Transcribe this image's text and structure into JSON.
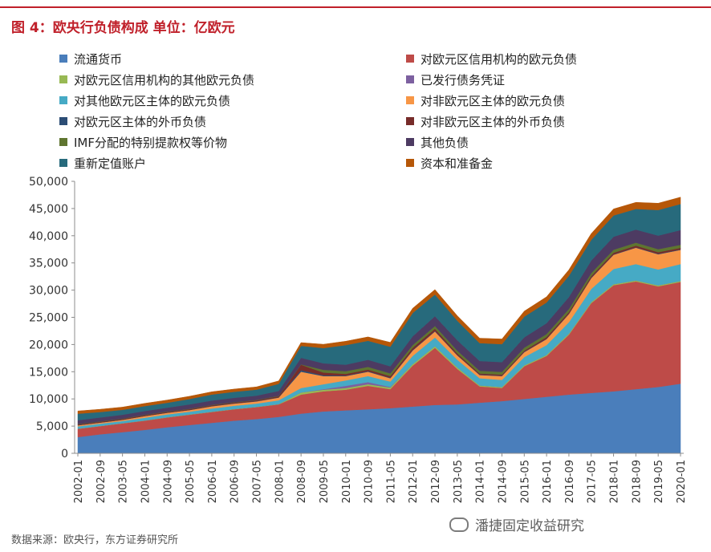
{
  "header": {
    "title": "图 4：欧央行负债构成  单位：亿欧元"
  },
  "footer": {
    "source": "数据来源：欧央行，东方证券研究所",
    "watermark": "潘捷固定收益研究"
  },
  "chart_data": {
    "type": "area",
    "stacked": true,
    "title": "图 4：欧央行负债构成  单位：亿欧元",
    "ylabel": "亿欧元",
    "ylim": [
      0,
      50000
    ],
    "yticks": [
      0,
      5000,
      10000,
      15000,
      20000,
      25000,
      30000,
      35000,
      40000,
      45000,
      50000
    ],
    "ytick_labels": [
      "0",
      "5,000",
      "10,000",
      "15,000",
      "20,000",
      "25,000",
      "30,000",
      "35,000",
      "40,000",
      "45,000",
      "50,000"
    ],
    "grid": false,
    "legend_position": "top",
    "x": [
      "2002-01",
      "2002-09",
      "2003-05",
      "2004-01",
      "2004-09",
      "2005-05",
      "2006-01",
      "2006-09",
      "2007-05",
      "2008-01",
      "2008-09",
      "2009-05",
      "2010-01",
      "2010-09",
      "2011-05",
      "2012-01",
      "2012-09",
      "2013-05",
      "2014-01",
      "2014-09",
      "2015-05",
      "2016-01",
      "2016-09",
      "2017-05",
      "2018-01",
      "2018-09",
      "2019-05",
      "2020-01"
    ],
    "series": [
      {
        "name": "流通货币",
        "color": "#4a7ebb",
        "values": [
          3000,
          3500,
          3900,
          4300,
          4800,
          5200,
          5600,
          6000,
          6300,
          6700,
          7300,
          7700,
          7900,
          8100,
          8300,
          8600,
          8900,
          9000,
          9300,
          9600,
          10000,
          10400,
          10800,
          11100,
          11400,
          11800,
          12200,
          12800
        ]
      },
      {
        "name": "对欧元区信用机构的欧元负债",
        "color": "#be4b48",
        "values": [
          1500,
          1500,
          1600,
          1700,
          1800,
          1900,
          2000,
          2100,
          2200,
          2300,
          3500,
          3700,
          3800,
          4300,
          3500,
          7500,
          10500,
          6500,
          3000,
          2400,
          6000,
          7500,
          11000,
          16500,
          19500,
          19800,
          18500,
          18700
        ]
      },
      {
        "name": "对欧元区信用机构的其他欧元负债",
        "color": "#98b954",
        "values": [
          50,
          50,
          50,
          50,
          50,
          50,
          50,
          50,
          50,
          50,
          400,
          300,
          300,
          300,
          300,
          300,
          300,
          300,
          200,
          200,
          200,
          200,
          200,
          200,
          200,
          200,
          200,
          200
        ]
      },
      {
        "name": "已发行债务凭证",
        "color": "#7d60a0",
        "values": [
          0,
          0,
          0,
          0,
          0,
          0,
          0,
          0,
          0,
          0,
          0,
          100,
          400,
          400,
          100,
          0,
          0,
          0,
          0,
          0,
          0,
          0,
          0,
          0,
          0,
          0,
          0,
          0
        ]
      },
      {
        "name": "对其他欧元区主体的欧元负债",
        "color": "#46aac5",
        "values": [
          400,
          400,
          400,
          500,
          500,
          500,
          600,
          600,
          600,
          700,
          800,
          900,
          1000,
          1100,
          1000,
          1500,
          1600,
          1400,
          1300,
          1300,
          1500,
          1800,
          2100,
          2400,
          2800,
          3000,
          2900,
          3100
        ]
      },
      {
        "name": "对非欧元区主体的欧元负债",
        "color": "#f79646",
        "values": [
          200,
          200,
          200,
          300,
          300,
          300,
          400,
          400,
          400,
          500,
          3000,
          1500,
          800,
          800,
          600,
          1000,
          1100,
          800,
          600,
          700,
          900,
          1100,
          1500,
          2000,
          2600,
          3000,
          2800,
          2600
        ]
      },
      {
        "name": "对欧元区主体的外币负债",
        "color": "#2c4d75",
        "values": [
          30,
          30,
          30,
          30,
          30,
          30,
          50,
          50,
          50,
          60,
          300,
          150,
          100,
          100,
          100,
          100,
          100,
          80,
          70,
          70,
          80,
          80,
          80,
          80,
          80,
          80,
          80,
          80
        ]
      },
      {
        "name": "对非欧元区主体的外币负债",
        "color": "#772c2a",
        "values": [
          150,
          150,
          150,
          150,
          150,
          150,
          150,
          150,
          150,
          200,
          1000,
          500,
          300,
          300,
          300,
          400,
          400,
          300,
          200,
          200,
          200,
          300,
          300,
          300,
          300,
          300,
          300,
          300
        ]
      },
      {
        "name": "IMF分配的特别提款权等价物",
        "color": "#5f7530",
        "values": [
          60,
          60,
          60,
          60,
          60,
          60,
          60,
          60,
          60,
          60,
          60,
          500,
          500,
          500,
          500,
          500,
          500,
          500,
          500,
          500,
          550,
          550,
          550,
          550,
          550,
          550,
          550,
          560
        ]
      },
      {
        "name": "其他负债",
        "color": "#4d3b62",
        "values": [
          700,
          700,
          700,
          700,
          700,
          800,
          800,
          800,
          800,
          900,
          1200,
          1200,
          1200,
          1300,
          1300,
          1600,
          1800,
          1900,
          1800,
          1800,
          1900,
          2000,
          2200,
          2300,
          2400,
          2400,
          2500,
          2700
        ]
      },
      {
        "name": "重新定值账户",
        "color": "#276a7c",
        "values": [
          1200,
          1000,
          900,
          900,
          900,
          1000,
          1100,
          1100,
          1100,
          1300,
          2200,
          2800,
          3600,
          3500,
          3600,
          4300,
          4000,
          3600,
          3300,
          3300,
          3800,
          3800,
          3900,
          3800,
          3900,
          3800,
          4700,
          4800
        ]
      },
      {
        "name": "资本和准备金",
        "color": "#b65708",
        "values": [
          500,
          500,
          500,
          500,
          500,
          500,
          500,
          500,
          500,
          550,
          600,
          700,
          700,
          700,
          800,
          850,
          900,
          900,
          900,
          950,
          1000,
          1050,
          1100,
          1150,
          1200,
          1200,
          1250,
          1250
        ]
      }
    ]
  }
}
